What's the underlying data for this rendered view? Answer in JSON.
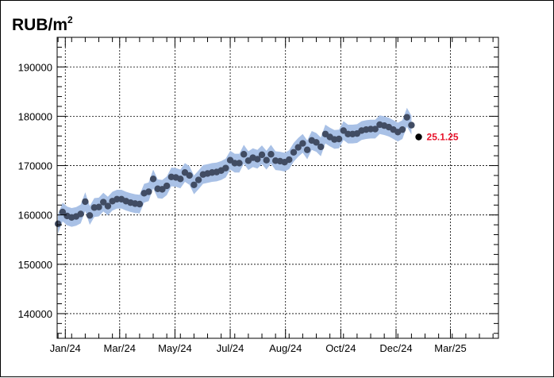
{
  "chart_data": {
    "type": "scatter",
    "title": "RUB/m",
    "title_superscript": "2",
    "ylim": [
      135000,
      196000
    ],
    "y_ticks": [
      140000,
      150000,
      160000,
      170000,
      180000,
      190000
    ],
    "y_tick_labels": [
      "140000",
      "150000",
      "160000",
      "170000",
      "180000",
      "190000"
    ],
    "x_tick_labels": [
      "Jan/24",
      "Mar/24",
      "May/24",
      "Jul/24",
      "Aug/24",
      "Oct/24",
      "Dec/24",
      "Mar/25"
    ],
    "xlim": [
      "2023-12-23",
      "2025-04-23"
    ],
    "x_tick_dates": [
      "2024-01-01",
      "2024-03-01",
      "2024-05-01",
      "2024-07-01",
      "2024-08-31",
      "2024-10-31",
      "2024-12-31",
      "2025-03-01"
    ],
    "grid": true,
    "band_color": "#a9c1e6",
    "marker_color": "#414c63",
    "highlight_color": "#000000",
    "annotation_color": "#e8132b",
    "series": [
      {
        "x": [
          "2023-12-24",
          "2023-12-29",
          "2024-01-03",
          "2024-01-08",
          "2024-01-13",
          "2024-01-18",
          "2024-01-23",
          "2024-01-28",
          "2024-02-02",
          "2024-02-07",
          "2024-02-12",
          "2024-02-17",
          "2024-02-22",
          "2024-02-27",
          "2024-03-03",
          "2024-03-08",
          "2024-03-13",
          "2024-03-18",
          "2024-03-23",
          "2024-03-28",
          "2024-04-02",
          "2024-04-07",
          "2024-04-12",
          "2024-04-17",
          "2024-04-22",
          "2024-04-27",
          "2024-05-02",
          "2024-05-07",
          "2024-05-12",
          "2024-05-17",
          "2024-05-22",
          "2024-05-27",
          "2024-06-01",
          "2024-06-06",
          "2024-06-11",
          "2024-06-16",
          "2024-06-21",
          "2024-06-26",
          "2024-07-01",
          "2024-07-06",
          "2024-07-11",
          "2024-07-16",
          "2024-07-21",
          "2024-07-26",
          "2024-07-31",
          "2024-08-05",
          "2024-08-10",
          "2024-08-15",
          "2024-08-20",
          "2024-08-25",
          "2024-08-30",
          "2024-09-04",
          "2024-09-09",
          "2024-09-14",
          "2024-09-19",
          "2024-09-24",
          "2024-09-29",
          "2024-10-04",
          "2024-10-09",
          "2024-10-14",
          "2024-10-19",
          "2024-10-24",
          "2024-10-29",
          "2024-11-03",
          "2024-11-08",
          "2024-11-13",
          "2024-11-18",
          "2024-11-23",
          "2024-11-28",
          "2024-12-03",
          "2024-12-08",
          "2024-12-13",
          "2024-12-18",
          "2024-12-23",
          "2024-12-28",
          "2025-01-02",
          "2025-01-07",
          "2025-01-12",
          "2025-01-17"
        ],
        "y": [
          158200,
          160600,
          159800,
          159500,
          159700,
          160200,
          162700,
          159900,
          161500,
          161600,
          162600,
          161800,
          162800,
          163200,
          163200,
          162800,
          162500,
          162300,
          162200,
          164400,
          164700,
          167300,
          165300,
          165200,
          165900,
          167700,
          167600,
          167300,
          168600,
          168000,
          166100,
          167100,
          168200,
          168400,
          168600,
          168700,
          169000,
          169500,
          171100,
          170500,
          170500,
          172300,
          171000,
          171600,
          171300,
          172200,
          171100,
          172300,
          171000,
          170900,
          170700,
          171200,
          172700,
          173700,
          174500,
          173200,
          175100,
          174700,
          173800,
          176400,
          175800,
          175300,
          175400,
          177100,
          176400,
          176400,
          176500,
          177100,
          177300,
          177400,
          177400,
          178300,
          178100,
          177800,
          177300,
          176800,
          177300,
          179800,
          178200
        ]
      }
    ],
    "highlight_point": {
      "x": "2025-01-25",
      "y": 175800
    },
    "annotation": "25.1.25"
  }
}
